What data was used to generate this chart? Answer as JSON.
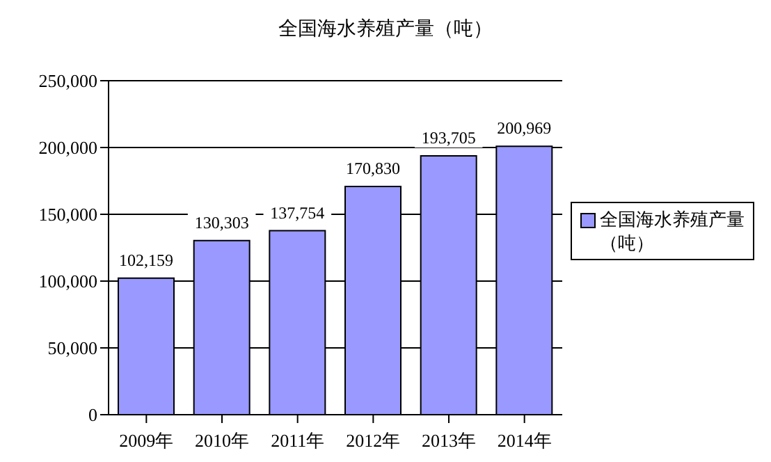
{
  "chart_data": {
    "type": "bar",
    "title": "全国海水养殖产量（吨）",
    "categories": [
      "2009年",
      "2010年",
      "2011年",
      "2012年",
      "2013年",
      "2014年"
    ],
    "series": [
      {
        "name": "全国海水养殖产量（吨）",
        "color": "#9999ff",
        "values": [
          102159,
          130303,
          137754,
          170830,
          193705,
          200969
        ],
        "value_labels": [
          "102,159",
          "130,303",
          "137,754",
          "170,830",
          "193,705",
          "200,969"
        ]
      }
    ],
    "ylim": [
      0,
      250000
    ],
    "yticks": [
      0,
      {
        "value": 50000,
        "label": "50,000"
      },
      {
        "value": 100000,
        "label": "100,000"
      },
      {
        "value": 150000,
        "label": "150,000"
      },
      {
        "value": 200000,
        "label": "200,000"
      },
      {
        "value": 250000,
        "label": "250,000"
      }
    ],
    "grid": "y",
    "legend": "right"
  }
}
